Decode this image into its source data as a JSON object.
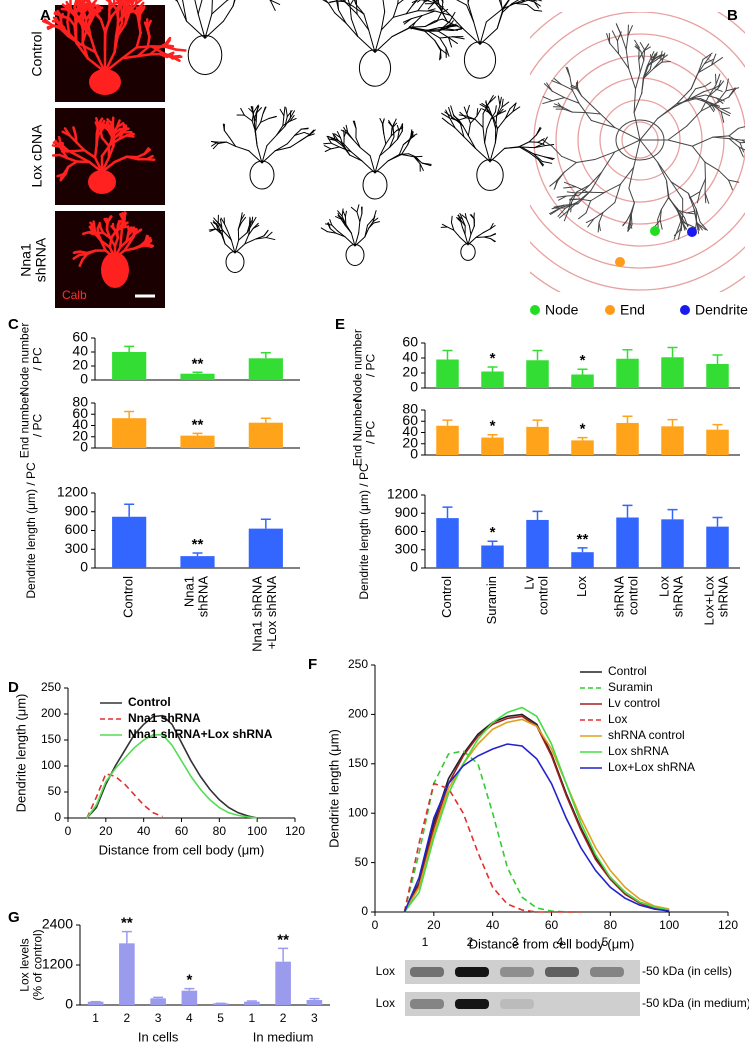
{
  "figure": {
    "panel_letters": [
      "A",
      "B",
      "C",
      "D",
      "E",
      "F",
      "G"
    ],
    "row_labels": [
      "Control",
      "Lox cDNA",
      "Nna1\nshRNA"
    ],
    "image_label": "Calb",
    "b_legend": [
      {
        "name": "Node",
        "color": "#22dd22"
      },
      {
        "name": "End",
        "color": "#ff9a1a"
      },
      {
        "name": "Dendrite",
        "color": "#1a1aee"
      }
    ],
    "blot": {
      "lanes": [
        "1",
        "2",
        "3",
        "4",
        "5"
      ],
      "rows": [
        {
          "label": "Lox",
          "marker": "-50 kDa (in cells)"
        },
        {
          "label": "Lox",
          "marker": "-50 kDa (in medium)"
        }
      ]
    }
  },
  "chart_data": [
    {
      "type": "bar",
      "ylabel": "Node number\n/ PC",
      "color": "#33dd33",
      "values": [
        40,
        9,
        31
      ],
      "errors": [
        8,
        2,
        8
      ],
      "annotations": [
        {
          "index": 1,
          "text": "**"
        }
      ],
      "ylim": [
        0,
        60
      ],
      "yticks": [
        0,
        20,
        40,
        60
      ]
    },
    {
      "type": "bar",
      "ylabel": "End number\n/ PC",
      "color": "#ffa31a",
      "values": [
        53,
        22,
        45
      ],
      "errors": [
        12,
        4,
        8
      ],
      "annotations": [
        {
          "index": 1,
          "text": "**"
        }
      ],
      "ylim": [
        0,
        80
      ],
      "yticks": [
        0,
        20,
        40,
        60,
        80
      ]
    },
    {
      "type": "bar",
      "ylabel": "Dendrite length (μm) / PC",
      "color": "#3366ff",
      "categories": [
        "Control",
        "Nna1\nshRNA",
        "Nna1 shRNA\n+Lox shRNA"
      ],
      "values": [
        820,
        190,
        630
      ],
      "errors": [
        200,
        50,
        150
      ],
      "annotations": [
        {
          "index": 1,
          "text": "**"
        }
      ],
      "ylim": [
        0,
        1200
      ],
      "yticks": [
        0,
        300,
        600,
        900,
        1200
      ]
    },
    {
      "type": "bar",
      "ylabel": "Node number\n/ PC",
      "color": "#33dd33",
      "values": [
        38,
        22,
        37,
        18,
        39,
        41,
        32
      ],
      "errors": [
        12,
        6,
        13,
        7,
        12,
        13,
        12
      ],
      "annotations": [
        {
          "index": 1,
          "text": "*"
        },
        {
          "index": 3,
          "text": "*"
        }
      ],
      "ylim": [
        0,
        60
      ],
      "yticks": [
        0,
        20,
        40,
        60
      ]
    },
    {
      "type": "bar",
      "ylabel": "End Number\n/ PC",
      "color": "#ffa31a",
      "values": [
        52,
        31,
        50,
        26,
        57,
        51,
        45
      ],
      "errors": [
        10,
        5,
        12,
        5,
        12,
        12,
        9
      ],
      "annotations": [
        {
          "index": 1,
          "text": "*"
        },
        {
          "index": 3,
          "text": "*"
        }
      ],
      "ylim": [
        0,
        80
      ],
      "yticks": [
        0,
        20,
        40,
        60,
        80
      ]
    },
    {
      "type": "bar",
      "ylabel": "Dendrite length (μm) / PC",
      "color": "#3366ff",
      "categories": [
        "Control",
        "Suramin",
        "Lv\ncontrol",
        "Lox",
        "shRNA\ncontrol",
        "Lox\nshRNA",
        "Lox+Lox\nshRNA"
      ],
      "values": [
        820,
        370,
        790,
        260,
        830,
        800,
        680
      ],
      "errors": [
        180,
        70,
        140,
        70,
        200,
        160,
        150
      ],
      "annotations": [
        {
          "index": 1,
          "text": "*"
        },
        {
          "index": 3,
          "text": "**"
        }
      ],
      "ylim": [
        0,
        1200
      ],
      "yticks": [
        0,
        300,
        600,
        900,
        1200
      ]
    },
    {
      "type": "line",
      "xlabel": "Distance from cell body (μm)",
      "ylabel": "Dendrite length (μm)",
      "xlim": [
        0,
        120
      ],
      "xticks": [
        0,
        20,
        40,
        60,
        80,
        100,
        120
      ],
      "ylim": [
        0,
        250
      ],
      "yticks": [
        0,
        50,
        100,
        150,
        200,
        250
      ],
      "legend": "top",
      "series": [
        {
          "name": "Control",
          "color": "#333333",
          "dash": false,
          "x": [
            10,
            15,
            20,
            25,
            30,
            35,
            40,
            45,
            50,
            55,
            60,
            65,
            70,
            75,
            80,
            85,
            90,
            95,
            100
          ],
          "values": [
            0,
            20,
            65,
            100,
            130,
            160,
            180,
            195,
            197,
            180,
            145,
            110,
            80,
            55,
            35,
            20,
            10,
            4,
            0
          ]
        },
        {
          "name": "Nna1 shRNA",
          "color": "#e03030",
          "dash": true,
          "x": [
            10,
            15,
            20,
            25,
            30,
            35,
            40,
            45,
            50
          ],
          "values": [
            0,
            40,
            85,
            80,
            65,
            45,
            25,
            10,
            3
          ]
        },
        {
          "name": "Nna1 shRNA+Lox shRNA",
          "color": "#55dd55",
          "dash": false,
          "x": [
            10,
            15,
            20,
            25,
            30,
            35,
            40,
            45,
            50,
            55,
            60,
            65,
            70,
            75,
            80,
            85,
            90,
            95,
            100
          ],
          "values": [
            0,
            25,
            70,
            95,
            115,
            135,
            150,
            160,
            160,
            140,
            110,
            80,
            55,
            35,
            20,
            10,
            5,
            2,
            0
          ]
        }
      ]
    },
    {
      "type": "line",
      "xlabel": "Distance from cell body (μm)",
      "ylabel": "Dendrite length (μm)",
      "xlim": [
        0,
        120
      ],
      "xticks": [
        0,
        20,
        40,
        60,
        80,
        100,
        120
      ],
      "ylim": [
        0,
        250
      ],
      "yticks": [
        0,
        50,
        100,
        150,
        200,
        250
      ],
      "legend": "top-right",
      "series": [
        {
          "name": "Control",
          "color": "#222222",
          "dash": false,
          "x": [
            10,
            15,
            20,
            25,
            30,
            35,
            40,
            45,
            50,
            55,
            60,
            65,
            70,
            75,
            80,
            85,
            90,
            95,
            100
          ],
          "values": [
            0,
            30,
            90,
            135,
            160,
            180,
            192,
            198,
            200,
            190,
            160,
            120,
            85,
            55,
            35,
            20,
            10,
            5,
            2
          ]
        },
        {
          "name": "Suramin",
          "color": "#33cc33",
          "dash": true,
          "x": [
            10,
            15,
            20,
            25,
            30,
            35,
            40,
            45,
            50,
            55,
            60,
            65,
            70
          ],
          "values": [
            0,
            60,
            130,
            160,
            163,
            150,
            100,
            45,
            15,
            4,
            1,
            0,
            0
          ]
        },
        {
          "name": "Lv control",
          "color": "#a02020",
          "dash": false,
          "x": [
            10,
            15,
            20,
            25,
            30,
            35,
            40,
            45,
            50,
            55,
            60,
            65,
            70,
            75,
            80,
            85,
            90,
            95,
            100
          ],
          "values": [
            0,
            28,
            85,
            130,
            158,
            178,
            190,
            196,
            198,
            188,
            158,
            118,
            83,
            53,
            33,
            18,
            9,
            4,
            2
          ]
        },
        {
          "name": "Lox",
          "color": "#e03030",
          "dash": true,
          "x": [
            10,
            15,
            20,
            25,
            30,
            35,
            40,
            45,
            50,
            55,
            60,
            65,
            70
          ],
          "values": [
            0,
            70,
            130,
            125,
            100,
            60,
            25,
            8,
            2,
            0,
            0,
            0,
            0
          ]
        },
        {
          "name": "shRNA control",
          "color": "#e0a020",
          "dash": false,
          "x": [
            10,
            15,
            20,
            25,
            30,
            35,
            40,
            45,
            50,
            55,
            60,
            65,
            70,
            75,
            80,
            85,
            90,
            95,
            100
          ],
          "values": [
            0,
            25,
            80,
            125,
            150,
            170,
            185,
            192,
            195,
            188,
            165,
            130,
            95,
            65,
            42,
            25,
            13,
            6,
            3
          ]
        },
        {
          "name": "Lox shRNA",
          "color": "#44dd44",
          "dash": false,
          "x": [
            10,
            15,
            20,
            25,
            30,
            35,
            40,
            45,
            50,
            55,
            60,
            65,
            70,
            75,
            80,
            85,
            90,
            95,
            100
          ],
          "values": [
            0,
            20,
            75,
            120,
            150,
            175,
            192,
            202,
            207,
            198,
            170,
            130,
            90,
            58,
            35,
            20,
            10,
            5,
            2
          ]
        },
        {
          "name": "Lox+Lox shRNA",
          "color": "#2222cc",
          "dash": false,
          "x": [
            10,
            15,
            20,
            25,
            30,
            35,
            40,
            45,
            50,
            55,
            60,
            65,
            70,
            75,
            80,
            85,
            90,
            95,
            100
          ],
          "values": [
            0,
            35,
            95,
            130,
            148,
            158,
            165,
            170,
            168,
            155,
            130,
            95,
            65,
            42,
            25,
            14,
            7,
            3,
            1
          ]
        }
      ]
    },
    {
      "type": "bar",
      "ylabel": "Lox levels\n(% of control)",
      "color": "#9b9bee",
      "categories": [
        "1",
        "2",
        "3",
        "4",
        "5",
        "1",
        "2",
        "3"
      ],
      "group_labels": [
        "In cells",
        "In medium"
      ],
      "values": [
        100,
        1850,
        200,
        430,
        50,
        100,
        1300,
        150
      ],
      "errors": [
        0,
        350,
        30,
        60,
        0,
        20,
        400,
        40
      ],
      "annotations": [
        {
          "index": 1,
          "text": "**"
        },
        {
          "index": 3,
          "text": "*"
        },
        {
          "index": 6,
          "text": "**"
        }
      ],
      "ylim": [
        0,
        2400
      ],
      "yticks": [
        0,
        1200,
        2400
      ]
    }
  ]
}
